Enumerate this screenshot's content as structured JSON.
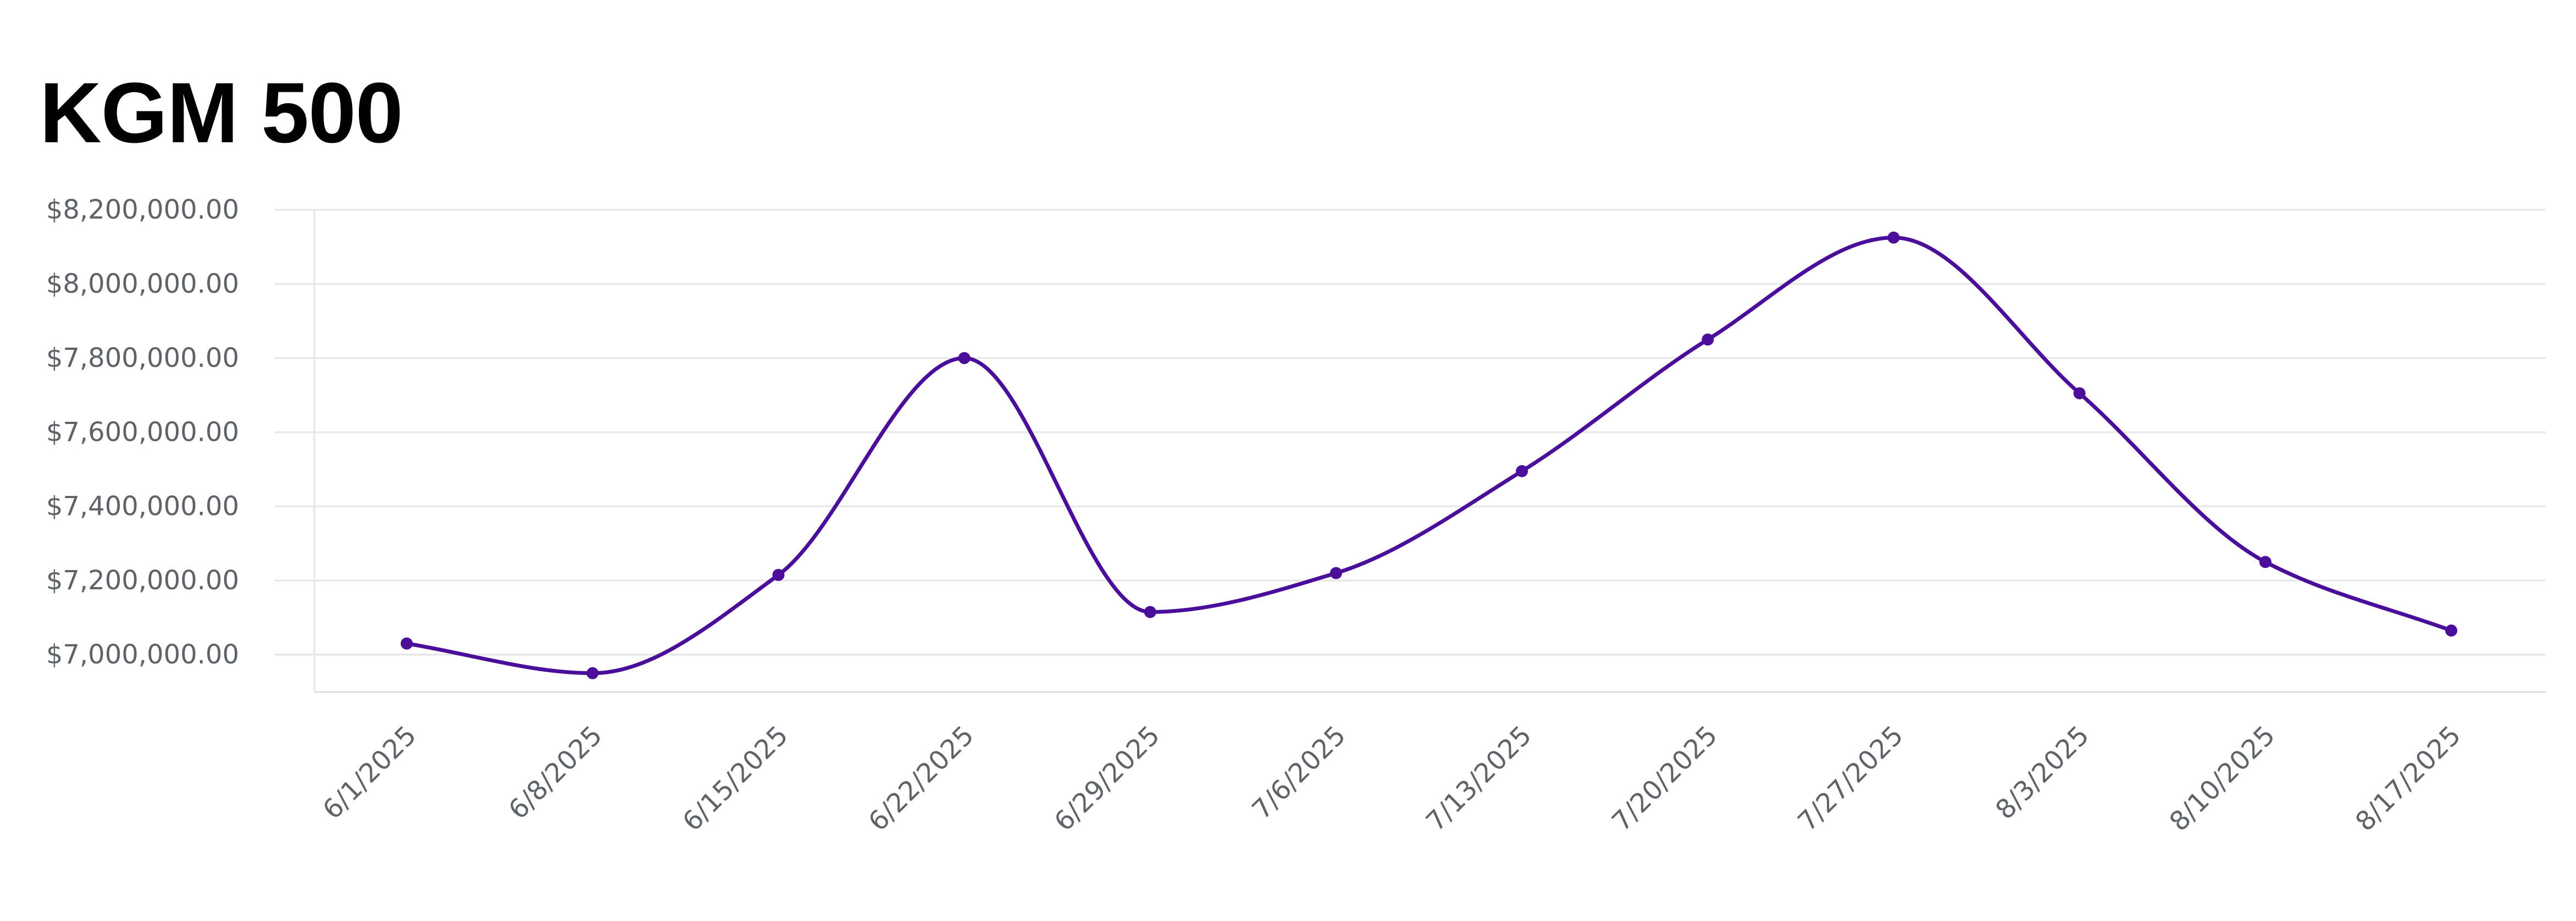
{
  "chart_data": {
    "type": "line",
    "title": "KGM 500",
    "xlabel": "",
    "ylabel": "",
    "x": [
      "6/1/2025",
      "6/8/2025",
      "6/15/2025",
      "6/22/2025",
      "6/29/2025",
      "7/6/2025",
      "7/13/2025",
      "7/20/2025",
      "7/27/2025",
      "8/3/2025",
      "8/10/2025",
      "8/17/2025"
    ],
    "series": [
      {
        "values": [
          7030000,
          6950000,
          7215000,
          7800000,
          7115000,
          7220000,
          7495000,
          7850000,
          8125000,
          7705000,
          7250000,
          7065000
        ]
      }
    ],
    "yticks": [
      7000000,
      7200000,
      7400000,
      7600000,
      7800000,
      8000000,
      8200000
    ],
    "ytick_labels": [
      "$7,000,000.00",
      "$7,200,000.00",
      "$7,400,000.00",
      "$7,600,000.00",
      "$7,800,000.00",
      "$8,000,000.00",
      "$8,200,000.00"
    ],
    "ylim": [
      6900000,
      8200000
    ],
    "grid": true,
    "legend": "none",
    "colors": {
      "line": "#4a0e9a",
      "grid": "#e6e6e6",
      "axis_text": "#5f6368",
      "title": "#000000"
    }
  }
}
